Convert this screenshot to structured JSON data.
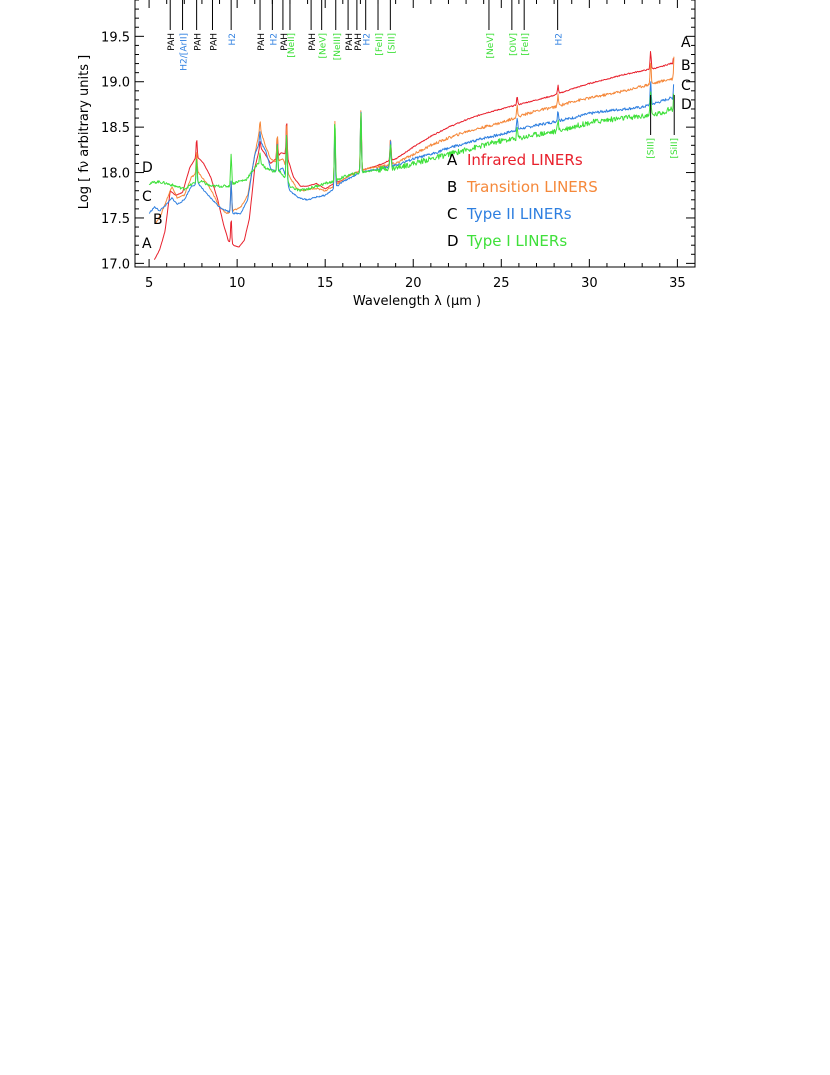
{
  "chart_data": {
    "type": "line",
    "title": "",
    "xlabel": "Wavelength λ (μm )",
    "ylabel": "Log [ fν arbitrary units ]",
    "xlim": [
      4.2,
      36.0
    ],
    "ylim": [
      16.96,
      19.9
    ],
    "grid": false,
    "x_ticks": [
      "5",
      "10",
      "15",
      "20",
      "25",
      "30",
      "35"
    ],
    "y_ticks": [
      "17.0",
      "17.5",
      "18.0",
      "18.5",
      "19.0",
      "19.5"
    ],
    "legend": {
      "placement": "center-right",
      "entries": [
        {
          "letter": "A",
          "name": "Infrared LINERs",
          "color": "#e8202c"
        },
        {
          "letter": "B",
          "name": "Transition LINERS",
          "color": "#f5883a"
        },
        {
          "letter": "C",
          "name": "Type II LINERs",
          "color": "#2e7fe0"
        },
        {
          "letter": "D",
          "name": "Type I  LINERs",
          "color": "#3fe03a"
        }
      ]
    },
    "series": [
      {
        "letter": "A",
        "name": "Infrared LINERs",
        "color": "#e8202c",
        "x": [
          5.3,
          5.6,
          5.9,
          6.2,
          6.5,
          6.9,
          7.3,
          7.7,
          8.1,
          8.5,
          8.9,
          9.2,
          9.5,
          9.8,
          10.1,
          10.4,
          10.7,
          11.0,
          11.3,
          11.6,
          11.9,
          12.2,
          12.5,
          12.8,
          13.2,
          13.6,
          14.0,
          14.5,
          15.0,
          15.5,
          16.0,
          16.5,
          17.0,
          17.5,
          18.0,
          18.5,
          19.0,
          20.0,
          21.0,
          22.0,
          23.0,
          24.0,
          25.0,
          26.0,
          27.0,
          28.0,
          29.0,
          30.0,
          31.0,
          32.0,
          33.0,
          34.0,
          34.6,
          34.8
        ],
        "y": [
          17.04,
          17.15,
          17.35,
          17.8,
          17.75,
          17.78,
          18.05,
          18.18,
          18.1,
          17.95,
          17.7,
          17.45,
          17.25,
          17.2,
          17.18,
          17.25,
          17.5,
          18.05,
          18.28,
          18.2,
          18.1,
          18.15,
          18.22,
          18.2,
          17.95,
          17.85,
          17.85,
          17.88,
          17.82,
          17.88,
          17.92,
          17.98,
          18.02,
          18.05,
          18.08,
          18.12,
          18.15,
          18.28,
          18.4,
          18.5,
          18.58,
          18.65,
          18.7,
          18.75,
          18.8,
          18.85,
          18.92,
          18.98,
          19.03,
          19.08,
          19.12,
          19.16,
          19.2,
          19.2
        ]
      },
      {
        "letter": "B",
        "name": "Transition LINERS",
        "color": "#f5883a",
        "x": [
          5.4,
          5.7,
          6.0,
          6.3,
          6.6,
          7.0,
          7.4,
          7.8,
          8.2,
          8.6,
          9.0,
          9.4,
          9.8,
          10.2,
          10.6,
          11.0,
          11.3,
          11.6,
          11.9,
          12.2,
          12.6,
          13.0,
          13.4,
          13.8,
          14.2,
          14.6,
          15.0,
          15.5,
          16.0,
          16.5,
          17.0,
          17.5,
          18.0,
          18.5,
          19.0,
          20.0,
          21.0,
          22.0,
          23.0,
          24.0,
          25.0,
          26.0,
          27.0,
          28.0,
          29.0,
          30.0,
          31.0,
          32.0,
          33.0,
          34.0,
          34.6,
          34.8
        ],
        "y": [
          17.45,
          17.55,
          17.7,
          17.85,
          17.72,
          17.75,
          17.95,
          18.0,
          17.9,
          17.78,
          17.62,
          17.55,
          17.58,
          17.62,
          17.75,
          18.2,
          18.48,
          18.3,
          18.15,
          18.12,
          18.15,
          17.95,
          17.82,
          17.8,
          17.82,
          17.82,
          17.8,
          17.85,
          17.92,
          17.98,
          18.02,
          18.05,
          18.06,
          18.08,
          18.1,
          18.2,
          18.3,
          18.38,
          18.45,
          18.5,
          18.55,
          18.62,
          18.68,
          18.72,
          18.78,
          18.82,
          18.86,
          18.9,
          18.95,
          19.0,
          19.03,
          19.03
        ]
      },
      {
        "letter": "C",
        "name": "Type II LINERs",
        "color": "#2e7fe0",
        "x": [
          5.0,
          5.3,
          5.6,
          6.0,
          6.3,
          6.6,
          7.0,
          7.4,
          7.8,
          8.2,
          8.6,
          9.0,
          9.4,
          9.8,
          10.2,
          10.6,
          11.0,
          11.3,
          11.6,
          11.9,
          12.2,
          12.6,
          13.0,
          13.5,
          14.0,
          14.5,
          15.0,
          15.5,
          16.0,
          16.5,
          17.0,
          17.5,
          18.0,
          18.5,
          19.0,
          20.0,
          21.0,
          22.0,
          23.0,
          24.0,
          25.0,
          26.0,
          27.0,
          28.0,
          29.0,
          30.0,
          31.0,
          32.0,
          33.0,
          34.0,
          34.6,
          34.8
        ],
        "y": [
          17.55,
          17.62,
          17.58,
          17.65,
          17.72,
          17.65,
          17.7,
          17.85,
          17.88,
          17.78,
          17.7,
          17.62,
          17.58,
          17.55,
          17.55,
          17.7,
          18.2,
          18.35,
          18.25,
          18.05,
          18.0,
          18.05,
          17.8,
          17.72,
          17.7,
          17.73,
          17.75,
          17.82,
          17.9,
          17.95,
          18.0,
          18.02,
          18.04,
          18.06,
          18.08,
          18.15,
          18.2,
          18.27,
          18.32,
          18.38,
          18.42,
          18.48,
          18.52,
          18.56,
          18.6,
          18.65,
          18.68,
          18.7,
          18.72,
          18.78,
          18.82,
          18.82
        ]
      },
      {
        "letter": "D",
        "name": "Type I  LINERs",
        "color": "#3fe03a",
        "x": [
          5.0,
          5.5,
          6.0,
          6.5,
          7.0,
          7.5,
          8.0,
          8.5,
          9.0,
          9.5,
          10.0,
          10.5,
          11.0,
          11.3,
          11.6,
          12.0,
          12.5,
          13.0,
          13.5,
          14.0,
          14.5,
          15.0,
          15.5,
          16.0,
          16.5,
          17.0,
          17.5,
          18.0,
          18.5,
          19.0,
          20.0,
          21.0,
          22.0,
          23.0,
          24.0,
          25.0,
          26.0,
          27.0,
          28.0,
          29.0,
          30.0,
          31.0,
          32.0,
          33.0,
          34.0,
          34.6,
          34.8
        ],
        "y": [
          17.88,
          17.9,
          17.88,
          17.85,
          17.82,
          17.88,
          17.9,
          17.85,
          17.85,
          17.85,
          17.9,
          17.92,
          18.05,
          18.12,
          18.05,
          18.02,
          18.0,
          17.85,
          17.8,
          17.82,
          17.85,
          17.88,
          17.9,
          17.95,
          17.98,
          18.0,
          18.02,
          18.03,
          18.05,
          18.05,
          18.1,
          18.15,
          18.2,
          18.25,
          18.3,
          18.35,
          18.38,
          18.42,
          18.45,
          18.5,
          18.55,
          18.58,
          18.6,
          18.62,
          18.65,
          18.7,
          18.7
        ]
      }
    ],
    "line_features": [
      {
        "x": 7.7,
        "h": 0.25
      },
      {
        "x": 9.66,
        "h": 0.35
      },
      {
        "x": 11.3,
        "h": 0.1
      },
      {
        "x": 12.28,
        "h": 0.3
      },
      {
        "x": 12.81,
        "h": 0.5
      },
      {
        "x": 15.55,
        "h": 0.7
      },
      {
        "x": 17.03,
        "h": 0.7
      },
      {
        "x": 18.71,
        "h": 0.28
      },
      {
        "x": 25.9,
        "h": 0.12
      },
      {
        "x": 28.22,
        "h": 0.12
      },
      {
        "x": 33.48,
        "h": 0.25
      },
      {
        "x": 34.82,
        "h": 0.32
      }
    ],
    "top_annotations": [
      {
        "x": 6.2,
        "label": "PAH",
        "color": "#000000"
      },
      {
        "x": 6.9,
        "label": "H2/[ArII]",
        "color": "#2e7fe0"
      },
      {
        "x": 7.7,
        "label": "PAH",
        "color": "#000000"
      },
      {
        "x": 8.6,
        "label": "PAH",
        "color": "#000000"
      },
      {
        "x": 9.66,
        "label": "H2",
        "color": "#2e7fe0"
      },
      {
        "x": 11.3,
        "label": "PAH",
        "color": "#000000"
      },
      {
        "x": 12.0,
        "label": "H2",
        "color": "#2e7fe0"
      },
      {
        "x": 12.6,
        "label": "PAH",
        "color": "#000000"
      },
      {
        "x": 13.0,
        "label": "[NeII]",
        "color": "#3fe03a"
      },
      {
        "x": 14.2,
        "label": "PAH",
        "color": "#000000"
      },
      {
        "x": 14.8,
        "label": "[NeV]",
        "color": "#3fe03a"
      },
      {
        "x": 15.6,
        "label": "[NeIII]",
        "color": "#3fe03a"
      },
      {
        "x": 16.3,
        "label": "PAH",
        "color": "#000000"
      },
      {
        "x": 16.8,
        "label": "PAH",
        "color": "#000000"
      },
      {
        "x": 17.3,
        "label": "H2",
        "color": "#2e7fe0"
      },
      {
        "x": 18.0,
        "label": "[FeII]",
        "color": "#3fe03a"
      },
      {
        "x": 18.7,
        "label": "[SIII]",
        "color": "#3fe03a"
      },
      {
        "x": 24.3,
        "label": "[NeV]",
        "color": "#3fe03a"
      },
      {
        "x": 25.6,
        "label": "[OIV]",
        "color": "#3fe03a"
      },
      {
        "x": 26.3,
        "label": "[FeII]",
        "color": "#3fe03a"
      },
      {
        "x": 28.2,
        "label": "H2",
        "color": "#2e7fe0"
      }
    ],
    "bottom_annotations": [
      {
        "x": 33.48,
        "label": "[SIII]",
        "color": "#3fe03a"
      },
      {
        "x": 34.82,
        "label": "[SiII]",
        "color": "#3fe03a"
      }
    ],
    "series_letters_left": [
      "A",
      "B",
      "C",
      "D"
    ],
    "series_letters_right": [
      "A",
      "B",
      "C",
      "D"
    ]
  }
}
